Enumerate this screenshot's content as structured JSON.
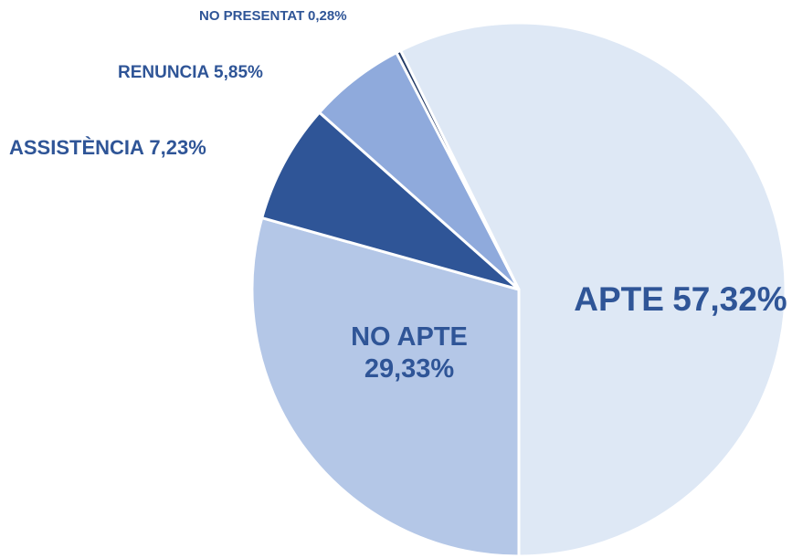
{
  "chart_data": {
    "type": "pie",
    "categories": [
      "APTE",
      "NO APTE",
      "ASSISTÈNCIA",
      "RENUNCIA",
      "NO PRESENTAT"
    ],
    "values": [
      57.32,
      29.33,
      7.23,
      5.85,
      0.28
    ],
    "value_labels": [
      "57,32%",
      "29,33%",
      "7,23%",
      "5,85%",
      "0,28%"
    ],
    "colors": [
      "#dee8f5",
      "#b4c7e7",
      "#2f5597",
      "#8faadc",
      "#203864"
    ]
  }
}
